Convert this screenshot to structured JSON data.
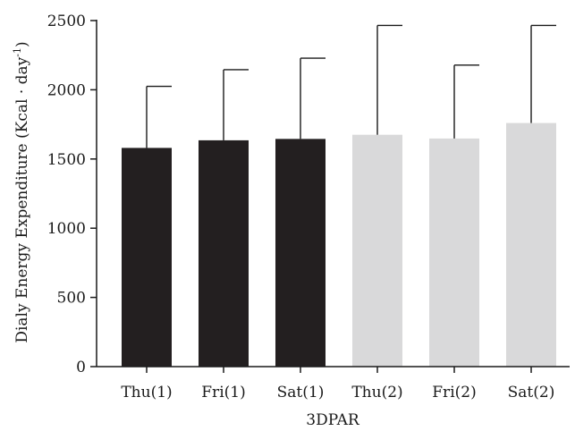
{
  "chart_data": {
    "type": "bar",
    "categories": [
      "Thu(1)",
      "Fri(1)",
      "Sat(1)",
      "Thu(2)",
      "Fri(2)",
      "Sat(2)"
    ],
    "values": [
      1580,
      1635,
      1645,
      1675,
      1648,
      1760
    ],
    "error_upper": [
      2025,
      2145,
      2228,
      2465,
      2178,
      2465
    ],
    "bar_colors": [
      "#231f20",
      "#231f20",
      "#231f20",
      "#d9d9da",
      "#d9d9da",
      "#d9d9da"
    ],
    "title": "",
    "xlabel": "3DPAR",
    "ylabel_parts": {
      "main": "Dialy Energy Expenditure (Kcal · day",
      "superscript": "-1",
      "close": ")"
    },
    "ylim": [
      0,
      2500
    ],
    "yticks": [
      0,
      500,
      1000,
      1500,
      2000,
      2500
    ],
    "grid": false,
    "legend": "none"
  }
}
